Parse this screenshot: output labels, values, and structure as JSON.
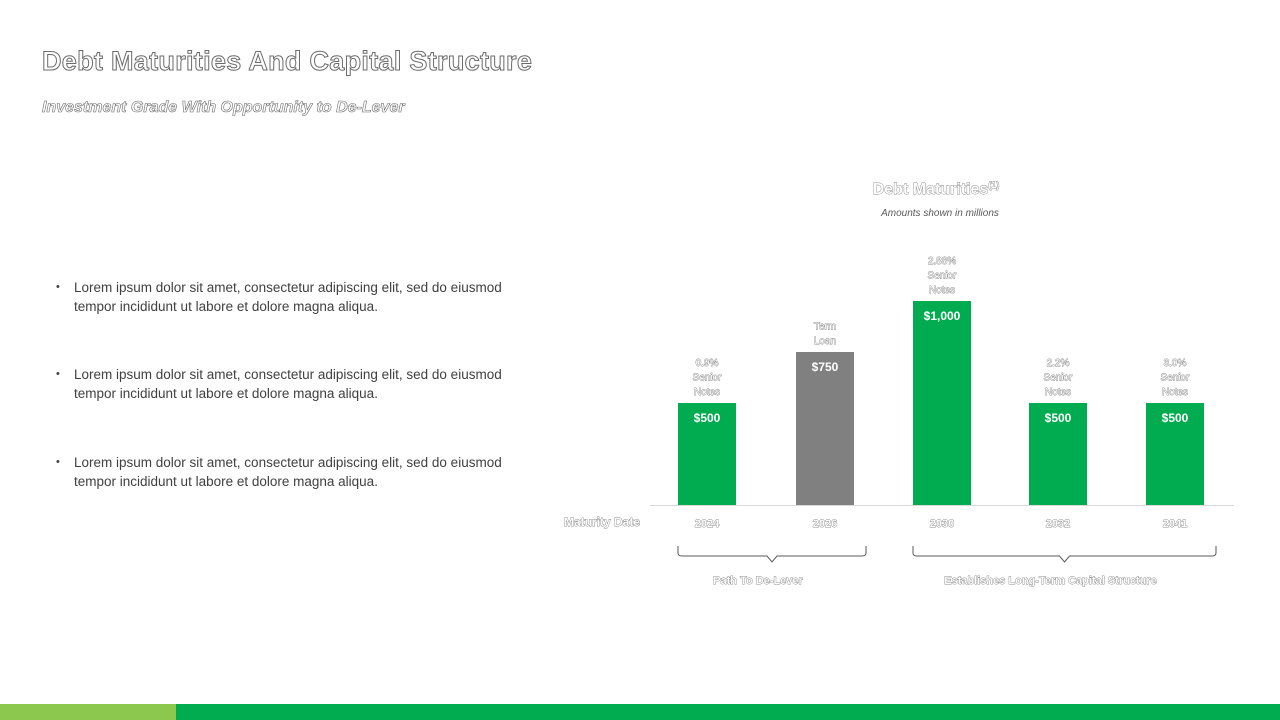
{
  "slide": {
    "title": "Debt Maturities And Capital Structure",
    "subtitle": "Investment Grade With Opportunity to De-Lever"
  },
  "bullets": [
    "Lorem ipsum dolor sit amet, consectetur adipiscing elit, sed do eiusmod tempor incididunt ut labore et dolore magna aliqua.",
    "Lorem ipsum dolor sit amet, consectetur adipiscing elit, sed do eiusmod tempor incididunt ut labore et dolore magna aliqua.",
    "Lorem ipsum dolor sit amet, consectetur adipiscing elit, sed do eiusmod tempor incididunt ut labore et dolore magna aliqua."
  ],
  "bullet_marker": "•",
  "colors": {
    "green": "#00ac4f",
    "gray": "#808080",
    "light_green": "#8bc84d"
  },
  "chart_data": {
    "type": "bar",
    "title": "Debt Maturities",
    "title_superscript": "(1)",
    "subtitle": "Amounts shown in millions",
    "xlabel": "Maturity Date",
    "categories": [
      "2024",
      "2026",
      "2030",
      "2032",
      "2041"
    ],
    "values": [
      500,
      750,
      1000,
      500,
      500
    ],
    "value_labels": [
      "$500",
      "$750",
      "$1,000",
      "$500",
      "$500"
    ],
    "bar_colors": [
      "green",
      "gray",
      "green",
      "green",
      "green"
    ],
    "annotations": [
      [
        "0.9%",
        "Senior",
        "Notes"
      ],
      [
        "Term",
        "Loan"
      ],
      [
        "2.88%",
        "Senior",
        "Notes"
      ],
      [
        "2.2%",
        "Senior",
        "Notes"
      ],
      [
        "3.0%",
        "Senior",
        "Notes"
      ]
    ],
    "brackets": [
      {
        "label": "Path To De-Lever",
        "from": 0,
        "to": 1
      },
      {
        "label": "Establishes Long-Term Capital Structure",
        "from": 2,
        "to": 4
      }
    ],
    "ylim": [
      0,
      1000
    ],
    "grid": false,
    "legend": "none"
  }
}
